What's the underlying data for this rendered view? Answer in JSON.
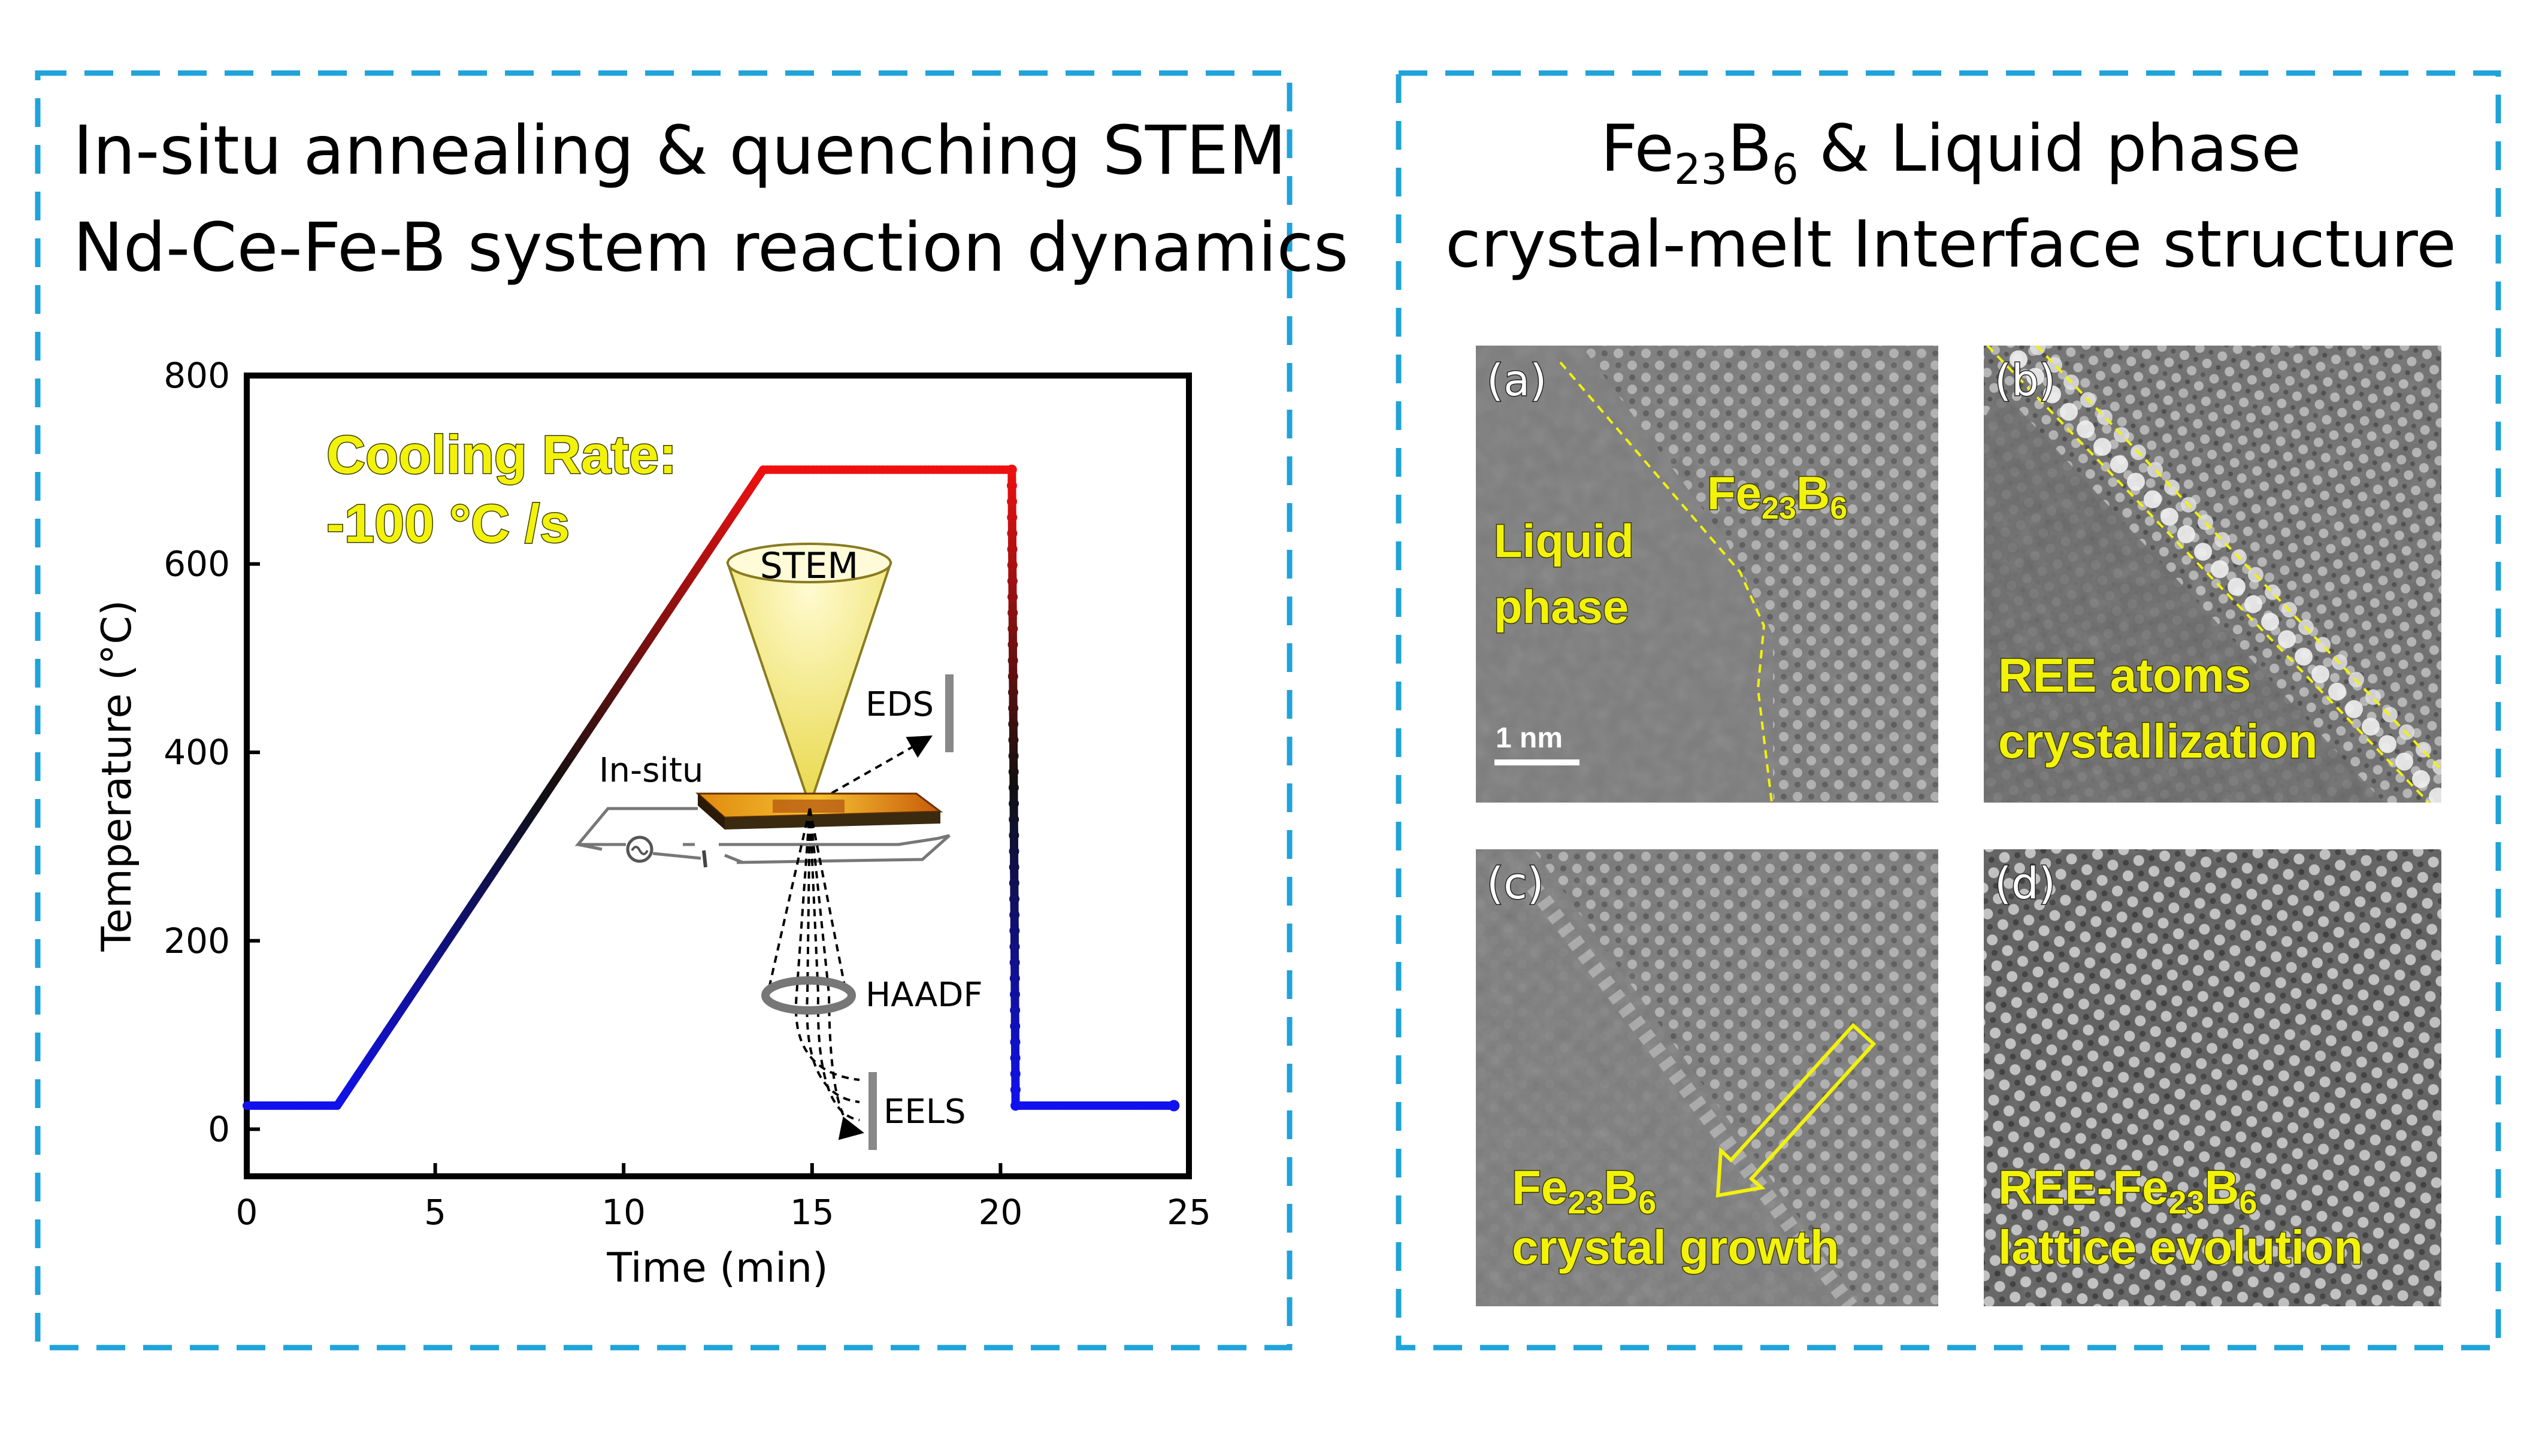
{
  "colors": {
    "frame": "#1fa3d9",
    "callout_yellow": "#f2f20a",
    "curve_cold": "#1010ee",
    "curve_hot": "#ee1010"
  },
  "left_panel": {
    "title_line1": "In-situ annealing & quenching STEM",
    "title_line2": "Nd-Ce-Fe-B system reaction dynamics",
    "cooling_rate_line1": "Cooling Rate:",
    "cooling_rate_line2": "-100 °C /s",
    "schematic": {
      "stem": "STEM",
      "eds": "EDS",
      "in_situ": "In-situ",
      "haadf": "HAADF",
      "eels": "EELS"
    }
  },
  "chart_data": {
    "type": "line",
    "xlabel": "Time (min)",
    "ylabel": "Temperature (°C)",
    "xlim": [
      0,
      25
    ],
    "ylim": [
      -50,
      800
    ],
    "xticks": [
      0,
      5,
      10,
      15,
      20,
      25
    ],
    "yticks": [
      0,
      200,
      400,
      600,
      800
    ],
    "series": [
      {
        "points": [
          [
            0,
            25
          ],
          [
            2.4,
            25
          ],
          [
            13.7,
            700
          ],
          [
            20.3,
            700
          ],
          [
            20.4,
            25
          ],
          [
            24.6,
            25
          ]
        ],
        "color_scale": "temperature blue-to-red"
      }
    ],
    "grid": false
  },
  "right_panel": {
    "title_line1_main": "Fe",
    "title_line1_sub1": "23",
    "title_line1_mid": "B",
    "title_line1_sub2": "6",
    "title_line1_rest": " & Liquid phase",
    "title_line2": "crystal-melt Interface structure",
    "panels": [
      {
        "letter": "(a)",
        "label_liquid_1": "Liquid",
        "label_liquid_2": "phase",
        "label_fe": "Fe",
        "sub1": "23",
        "b": "B",
        "sub2": "6",
        "scale_bar": "1 nm"
      },
      {
        "letter": "(b)",
        "line1": "REE atoms",
        "line2": "crystallization"
      },
      {
        "letter": "(c)",
        "line1_fe": "Fe",
        "sub1": "23",
        "b": "B",
        "sub2": "6",
        "line2": "crystal growth"
      },
      {
        "letter": "(d)",
        "line1_prefix": "REE-Fe",
        "sub1": "23",
        "b": "B",
        "sub2": "6",
        "line2": "lattice evolution"
      }
    ]
  }
}
